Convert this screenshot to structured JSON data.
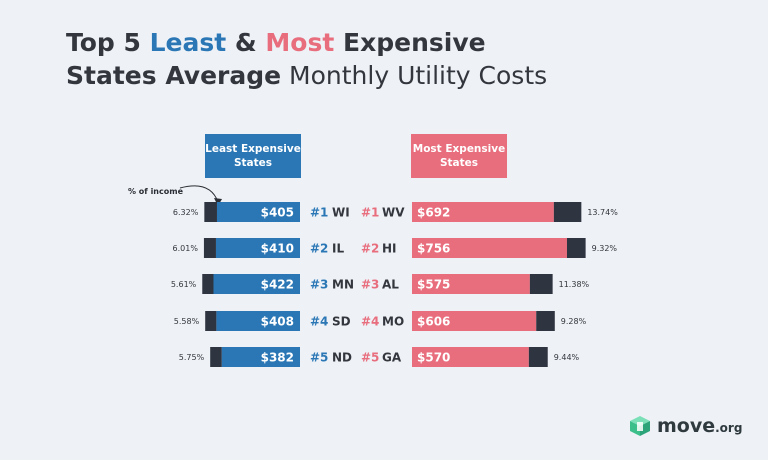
{
  "title": {
    "part1": "Top 5 ",
    "least": "Least",
    "amp": " & ",
    "most": "Most",
    "part2": " Expensive",
    "line2_bold": "States Average",
    "line2_rest": " Monthly Utility Costs"
  },
  "headers": {
    "least": "Least Expensive States",
    "most": "Most Expensive States"
  },
  "annotation": "% of income",
  "logo": {
    "main": "move",
    "suffix": ".org"
  },
  "colors": {
    "least": "#2b77b5",
    "most": "#e86d7d",
    "dark": "#2e3440",
    "text": "#33373d",
    "background": "#eef2f7"
  },
  "chart_data": [
    {
      "type": "bar",
      "name": "Least Expensive States",
      "categories": [
        "#1 WI",
        "#2 IL",
        "#3 MN",
        "#4 SD",
        "#5 ND"
      ],
      "rank_labels": [
        "#1",
        "#2",
        "#3",
        "#4",
        "#5"
      ],
      "states": [
        "WI",
        "IL",
        "MN",
        "SD",
        "ND"
      ],
      "values": [
        405,
        410,
        422,
        408,
        382
      ],
      "value_labels": [
        "$405",
        "$410",
        "$422",
        "$408",
        "$382"
      ],
      "percent_of_income": [
        6.32,
        6.01,
        5.61,
        5.58,
        5.75
      ],
      "percent_labels": [
        "6.32%",
        "6.01%",
        "5.61%",
        "5.58%",
        "5.75%"
      ]
    },
    {
      "type": "bar",
      "name": "Most Expensive States",
      "categories": [
        "#1 WV",
        "#2 HI",
        "#3 AL",
        "#4 MO",
        "#5 GA"
      ],
      "rank_labels": [
        "#1",
        "#2",
        "#3",
        "#4",
        "#5"
      ],
      "states": [
        "WV",
        "HI",
        "AL",
        "MO",
        "GA"
      ],
      "values": [
        692,
        756,
        575,
        606,
        570
      ],
      "value_labels": [
        "$692",
        "$756",
        "$575",
        "$606",
        "$570"
      ],
      "percent_of_income": [
        13.74,
        9.32,
        11.38,
        9.28,
        9.44
      ],
      "percent_labels": [
        "13.74%",
        "9.32%",
        "11.38%",
        "9.28%",
        "9.44%"
      ]
    }
  ]
}
